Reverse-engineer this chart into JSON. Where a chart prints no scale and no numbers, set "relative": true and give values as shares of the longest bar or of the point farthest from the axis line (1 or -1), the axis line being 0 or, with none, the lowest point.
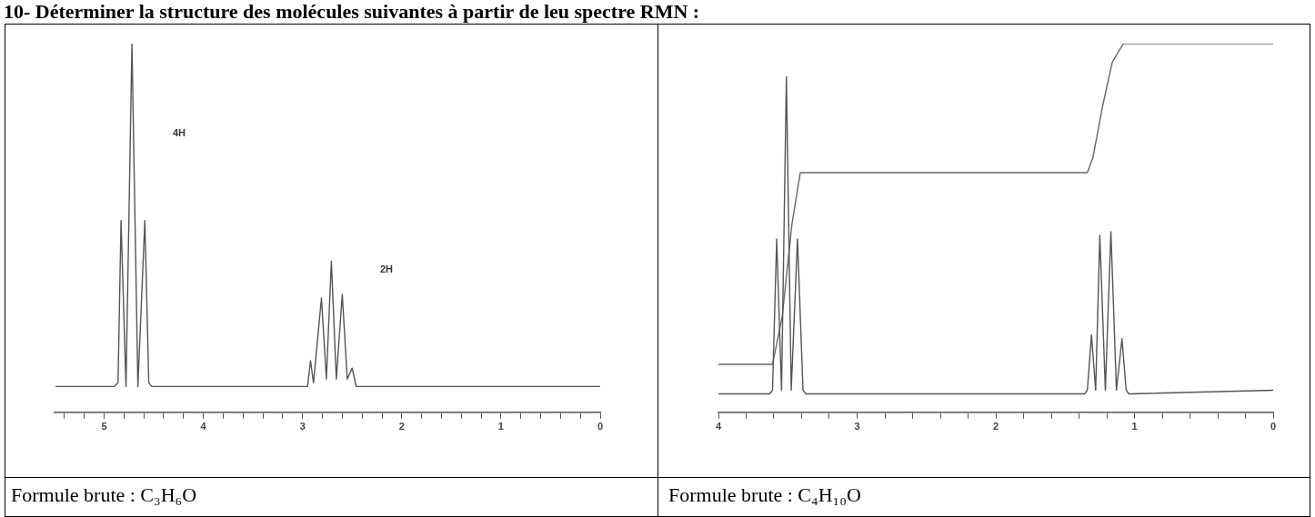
{
  "chart_data": [
    {
      "type": "line",
      "title": "10- Déterminer la structure des molécules suivantes à partir de leu spectre RMN :",
      "relative": true,
      "xlim": [
        5.5,
        0
      ],
      "xticks": [
        {
          "value": 5.4,
          "label": null
        },
        {
          "value": 5.2,
          "label": null
        },
        5,
        {
          "value": 4.8,
          "label": null
        },
        {
          "value": 4.6,
          "label": null
        },
        {
          "value": 4.4,
          "label": null
        },
        {
          "value": 4.2,
          "label": null
        },
        4,
        {
          "value": 3.8,
          "label": null
        },
        {
          "value": 3.6,
          "label": null
        },
        {
          "value": 3.4,
          "label": null
        },
        {
          "value": 3.2,
          "label": null
        },
        3,
        {
          "value": 2.8,
          "label": null
        },
        {
          "value": 2.6,
          "label": null
        },
        {
          "value": 2.4,
          "label": null
        },
        {
          "value": 2.2,
          "label": null
        },
        2,
        {
          "value": 1.8,
          "label": null
        },
        {
          "value": 1.6,
          "label": null
        },
        {
          "value": 1.4,
          "label": null
        },
        {
          "value": 1.2,
          "label": null
        },
        1,
        {
          "value": 0.8,
          "label": null
        },
        {
          "value": 0.6,
          "label": null
        },
        {
          "value": 0.4,
          "label": null
        },
        {
          "value": 0.2,
          "label": null
        },
        0
      ],
      "tick_labels": "x",
      "marker": "none",
      "annotations": [
        "4H",
        "2H",
        "Formule brute : C₃H₆O"
      ],
      "series": [
        {
          "color": "#555555",
          "x": [
            5.49,
            4.9,
            4.86,
            4.83,
            4.78,
            4.72,
            4.66,
            4.59,
            4.55,
            4.52,
            2.95,
            2.92,
            2.89,
            2.81,
            2.76,
            2.71,
            2.66,
            2.6,
            2.55,
            2.5,
            2.46,
            0
          ],
          "values": [
            0.07,
            0.07,
            0.08,
            0.52,
            0.07,
            1,
            0.07,
            0.52,
            0.08,
            0.07,
            0.07,
            0.14,
            0.08,
            0.31,
            0.09,
            0.41,
            0.09,
            0.32,
            0.09,
            0.12,
            0.07,
            0.07
          ]
        }
      ]
    },
    {
      "type": "line",
      "relative": true,
      "xlim": [
        4,
        0
      ],
      "xticks": [
        4,
        {
          "value": 3.8,
          "label": null
        },
        {
          "value": 3.6,
          "label": null
        },
        {
          "value": 3.4,
          "label": null
        },
        {
          "value": 3.2,
          "label": null
        },
        3,
        {
          "value": 2.8,
          "label": null
        },
        {
          "value": 2.6,
          "label": null
        },
        {
          "value": 2.4,
          "label": null
        },
        {
          "value": 2.2,
          "label": null
        },
        2,
        {
          "value": 1.8,
          "label": null
        },
        {
          "value": 1.6,
          "label": null
        },
        {
          "value": 1.4,
          "label": null
        },
        {
          "value": 1.2,
          "label": null
        },
        1,
        {
          "value": 0.8,
          "label": null
        },
        {
          "value": 0.6,
          "label": null
        },
        {
          "value": 0.4,
          "label": null
        },
        {
          "value": 0.2,
          "label": null
        },
        0
      ],
      "tick_labels": "x",
      "marker": "none",
      "annotations": [
        "Formule brute : C₄H₁₀O"
      ],
      "series": [
        {
          "color": "#555555",
          "x": [
            4,
            3.63,
            3.61,
            3.58,
            3.545,
            3.51,
            3.475,
            3.43,
            3.39,
            3.37,
            1.36,
            1.34,
            1.31,
            1.28,
            1.25,
            1.21,
            1.17,
            1.13,
            1.09,
            1.06,
            1.04,
            0
          ],
          "values": [
            0.05,
            0.05,
            0.06,
            0.47,
            0.06,
            0.91,
            0.06,
            0.47,
            0.06,
            0.05,
            0.05,
            0.06,
            0.21,
            0.06,
            0.48,
            0.06,
            0.49,
            0.06,
            0.2,
            0.06,
            0.05,
            0.06
          ]
        },
        {
          "color": "#666666",
          "x": [
            4,
            3.61,
            3.54,
            3.47,
            3.41,
            1.34,
            1.3,
            1.23,
            1.16,
            1.08,
            0
          ],
          "values": [
            0.13,
            0.13,
            0.26,
            0.51,
            0.65,
            0.65,
            0.69,
            0.83,
            0.95,
            1,
            1
          ]
        }
      ]
    }
  ]
}
